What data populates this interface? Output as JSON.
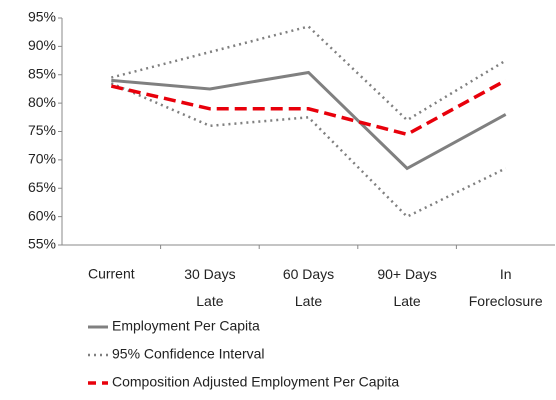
{
  "chart_data": {
    "type": "line",
    "categories": [
      "Current",
      "30 Days Late",
      "60 Days Late",
      "90+ Days Late",
      "In Foreclosure"
    ],
    "series": [
      {
        "name": "Employment Per Capita",
        "color": "#808080",
        "style": "solid",
        "values": [
          84,
          82.5,
          85.4,
          68.5,
          78
        ]
      },
      {
        "name": "95% Confidence Interval",
        "color": "#808080",
        "style": "dotted",
        "upper": [
          84.5,
          89,
          93.5,
          77,
          87.5
        ],
        "lower": [
          83.5,
          76,
          77.5,
          60,
          68.5
        ]
      },
      {
        "name": "Composition Adjusted Employment Per Capita",
        "color": "#e8000b",
        "style": "dashed",
        "values": [
          83,
          79,
          79,
          74.5,
          84
        ]
      }
    ],
    "ylim": [
      55,
      95
    ],
    "yticks": [
      {
        "value": 55,
        "label": "55%"
      },
      {
        "value": 60,
        "label": "60%"
      },
      {
        "value": 65,
        "label": "65%"
      },
      {
        "value": 70,
        "label": "70%"
      },
      {
        "value": 75,
        "label": "75%"
      },
      {
        "value": 80,
        "label": "80%"
      },
      {
        "value": 85,
        "label": "85%"
      },
      {
        "value": 90,
        "label": "90%"
      },
      {
        "value": 95,
        "label": "95%"
      }
    ],
    "grid": false,
    "legend": "bottom"
  }
}
